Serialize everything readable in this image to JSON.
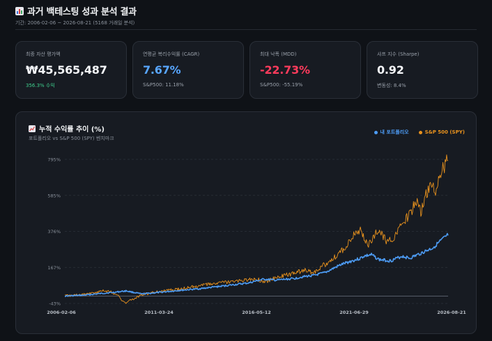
{
  "header": {
    "title": "과거 백테스팅 성과 분석 결과",
    "subtitle": "기간: 2006-02-06 ~ 2026-08-21 (5168 거래일 분석)"
  },
  "cards": [
    {
      "label": "최종 자산 평가액",
      "value": "₩45,565,487",
      "note": "356.3% 수익"
    },
    {
      "label": "연평균 복리수익률 (CAGR)",
      "value": "7.67%",
      "note": "S&P500: 11.18%"
    },
    {
      "label": "최대 낙폭 (MDD)",
      "value": "-22.73%",
      "note": "S&P500: -55.19%"
    },
    {
      "label": "샤프 지수 (Sharpe)",
      "value": "0.92",
      "note": "변동성: 8.4%"
    }
  ],
  "chart_panel": {
    "title": "누적 수익률 추이 (%)",
    "subtitle": "포트폴리오 vs S&P 500 (SPY) 벤치마크",
    "legend": [
      "내 포트폴리오",
      "S&P 500 (SPY)"
    ]
  },
  "colors": {
    "portfolio": "#4d9cf5",
    "spy": "#e8921e",
    "grid": "#2c323b"
  },
  "chart_data": {
    "type": "line",
    "x_ticks": [
      "2006-02-06",
      "2011-03-24",
      "2016-05-12",
      "2021-06-29",
      "2026-08-21"
    ],
    "y_ticks": [
      "795%",
      "585%",
      "376%",
      "167%",
      "-43%"
    ],
    "ylim": [
      -43,
      795
    ],
    "series": [
      {
        "name": "내 포트폴리오",
        "points": [
          [
            0,
            0
          ],
          [
            0.05,
            5
          ],
          [
            0.1,
            16
          ],
          [
            0.13,
            22
          ],
          [
            0.16,
            30
          ],
          [
            0.2,
            12
          ],
          [
            0.25,
            22
          ],
          [
            0.3,
            33
          ],
          [
            0.35,
            42
          ],
          [
            0.4,
            55
          ],
          [
            0.45,
            68
          ],
          [
            0.48,
            76
          ],
          [
            0.5,
            88
          ],
          [
            0.52,
            98
          ],
          [
            0.55,
            92
          ],
          [
            0.6,
            102
          ],
          [
            0.62,
            112
          ],
          [
            0.65,
            120
          ],
          [
            0.68,
            137
          ],
          [
            0.7,
            160
          ],
          [
            0.72,
            182
          ],
          [
            0.75,
            205
          ],
          [
            0.77,
            218
          ],
          [
            0.78,
            232
          ],
          [
            0.8,
            240
          ],
          [
            0.82,
            212
          ],
          [
            0.85,
            205
          ],
          [
            0.88,
            232
          ],
          [
            0.9,
            220
          ],
          [
            0.93,
            250
          ],
          [
            0.96,
            280
          ],
          [
            0.98,
            320
          ],
          [
            1.0,
            356
          ]
        ]
      },
      {
        "name": "S&P 500 (SPY)",
        "points": [
          [
            0,
            0
          ],
          [
            0.04,
            8
          ],
          [
            0.08,
            20
          ],
          [
            0.1,
            32
          ],
          [
            0.12,
            25
          ],
          [
            0.14,
            0
          ],
          [
            0.155,
            -40
          ],
          [
            0.17,
            -28
          ],
          [
            0.2,
            8
          ],
          [
            0.25,
            28
          ],
          [
            0.3,
            40
          ],
          [
            0.35,
            60
          ],
          [
            0.4,
            75
          ],
          [
            0.45,
            85
          ],
          [
            0.5,
            100
          ],
          [
            0.52,
            82
          ],
          [
            0.55,
            105
          ],
          [
            0.6,
            135
          ],
          [
            0.63,
            150
          ],
          [
            0.65,
            135
          ],
          [
            0.67,
            172
          ],
          [
            0.7,
            220
          ],
          [
            0.72,
            255
          ],
          [
            0.75,
            340
          ],
          [
            0.77,
            385
          ],
          [
            0.79,
            300
          ],
          [
            0.8,
            320
          ],
          [
            0.82,
            395
          ],
          [
            0.84,
            310
          ],
          [
            0.86,
            350
          ],
          [
            0.88,
            420
          ],
          [
            0.9,
            480
          ],
          [
            0.92,
            560
          ],
          [
            0.93,
            480
          ],
          [
            0.94,
            585
          ],
          [
            0.96,
            640
          ],
          [
            0.97,
            590
          ],
          [
            0.98,
            720
          ],
          [
            1.0,
            795
          ]
        ]
      }
    ]
  }
}
